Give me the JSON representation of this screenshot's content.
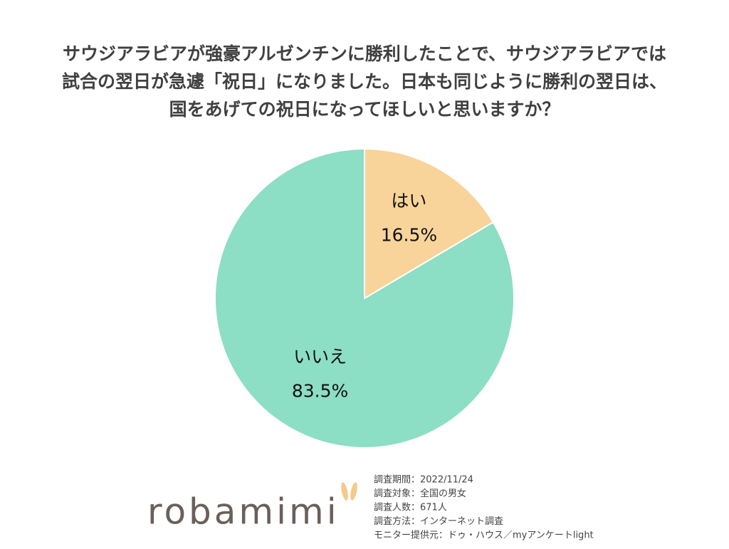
{
  "chart_data": {
    "type": "pie",
    "title": [
      "サウジアラビアが強豪アルゼンチンに勝利したことで、サウジアラビアでは",
      "試合の翌日が急遽「祝日」になりました。日本も同じように勝利の翌日は、",
      "国をあげての祝日になってほしいと思いますか？"
    ],
    "categories": [
      "はい",
      "いいえ"
    ],
    "values": [
      16.5,
      83.5
    ],
    "value_labels": [
      "16.5%",
      "83.5%"
    ],
    "colors": [
      "#f8d49a",
      "#8cdec4"
    ]
  },
  "footer": {
    "logo": "robamimi",
    "notes": [
      "調査期間：2022/11/24",
      "調査対象：全国の男女",
      "調査人数：671人",
      "調査方法：インターネット調査",
      "モニター提供元：ドゥ・ハウス／myアンケートlight"
    ]
  }
}
